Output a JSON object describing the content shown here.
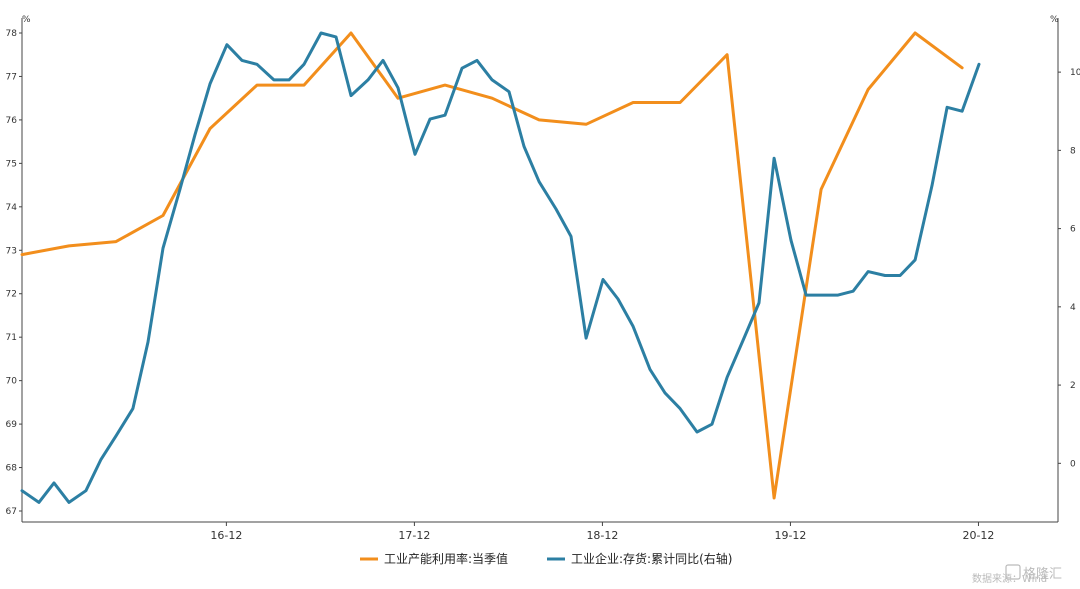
{
  "chart_data": {
    "type": "line",
    "left_unit": "%",
    "right_unit": "%",
    "left_axis": {
      "min": 67,
      "max": 78,
      "ticks": [
        67,
        68,
        69,
        70,
        71,
        72,
        73,
        74,
        75,
        76,
        77,
        78
      ]
    },
    "right_axis": {
      "min": -1.5,
      "max": 11,
      "ticks": [
        0,
        2,
        4,
        6,
        8,
        10
      ]
    },
    "x_range": [
      2015.83,
      2021.34
    ],
    "x_ticks": [
      {
        "label": "16-12",
        "x": 2016.917
      },
      {
        "label": "17-12",
        "x": 2017.917
      },
      {
        "label": "18-12",
        "x": 2018.917
      },
      {
        "label": "19-12",
        "x": 2019.917
      },
      {
        "label": "20-12",
        "x": 2020.917
      }
    ],
    "legend_position": "bottom",
    "series": [
      {
        "name": "工业产能利用率:当季值",
        "axis": "left",
        "color": "#F28E1C",
        "points": [
          [
            2015.83,
            72.9
          ],
          [
            2016.08,
            73.1
          ],
          [
            2016.33,
            73.2
          ],
          [
            2016.58,
            73.8
          ],
          [
            2016.83,
            75.8
          ],
          [
            2017.08,
            76.8
          ],
          [
            2017.33,
            76.8
          ],
          [
            2017.58,
            78.0
          ],
          [
            2017.83,
            76.5
          ],
          [
            2018.08,
            76.8
          ],
          [
            2018.33,
            76.5
          ],
          [
            2018.58,
            76.0
          ],
          [
            2018.83,
            75.9
          ],
          [
            2019.08,
            76.4
          ],
          [
            2019.33,
            76.4
          ],
          [
            2019.58,
            77.5
          ],
          [
            2019.83,
            67.3
          ],
          [
            2020.08,
            74.4
          ],
          [
            2020.33,
            76.7
          ],
          [
            2020.58,
            78.0
          ],
          [
            2020.83,
            77.2
          ]
        ]
      },
      {
        "name": "工业企业:存货:累计同比(右轴)",
        "axis": "right",
        "color": "#2C7FA3",
        "points": [
          [
            2015.83,
            -0.7
          ],
          [
            2015.92,
            -1.0
          ],
          [
            2016.0,
            -0.5
          ],
          [
            2016.08,
            -1.0
          ],
          [
            2016.17,
            -0.7
          ],
          [
            2016.25,
            0.1
          ],
          [
            2016.33,
            0.7
          ],
          [
            2016.42,
            1.4
          ],
          [
            2016.5,
            3.1
          ],
          [
            2016.58,
            5.5
          ],
          [
            2016.67,
            7.0
          ],
          [
            2016.75,
            8.4
          ],
          [
            2016.83,
            9.7
          ],
          [
            2016.92,
            10.7
          ],
          [
            2017.0,
            10.3
          ],
          [
            2017.08,
            10.2
          ],
          [
            2017.17,
            9.8
          ],
          [
            2017.25,
            9.8
          ],
          [
            2017.33,
            10.2
          ],
          [
            2017.42,
            11.0
          ],
          [
            2017.5,
            10.9
          ],
          [
            2017.58,
            9.4
          ],
          [
            2017.67,
            9.8
          ],
          [
            2017.75,
            10.3
          ],
          [
            2017.83,
            9.6
          ],
          [
            2017.92,
            7.9
          ],
          [
            2018.0,
            8.8
          ],
          [
            2018.08,
            8.9
          ],
          [
            2018.17,
            10.1
          ],
          [
            2018.25,
            10.3
          ],
          [
            2018.33,
            9.8
          ],
          [
            2018.42,
            9.5
          ],
          [
            2018.5,
            8.1
          ],
          [
            2018.58,
            7.2
          ],
          [
            2018.67,
            6.5
          ],
          [
            2018.75,
            5.8
          ],
          [
            2018.83,
            3.2
          ],
          [
            2018.92,
            4.7
          ],
          [
            2019.0,
            4.2
          ],
          [
            2019.08,
            3.5
          ],
          [
            2019.17,
            2.4
          ],
          [
            2019.25,
            1.8
          ],
          [
            2019.33,
            1.4
          ],
          [
            2019.42,
            0.8
          ],
          [
            2019.5,
            1.0
          ],
          [
            2019.58,
            2.2
          ],
          [
            2019.67,
            3.2
          ],
          [
            2019.75,
            4.1
          ],
          [
            2019.83,
            7.8
          ],
          [
            2019.92,
            5.7
          ],
          [
            2020.0,
            4.3
          ],
          [
            2020.08,
            4.3
          ],
          [
            2020.17,
            4.3
          ],
          [
            2020.25,
            4.4
          ],
          [
            2020.33,
            4.9
          ],
          [
            2020.42,
            4.8
          ],
          [
            2020.5,
            4.8
          ],
          [
            2020.58,
            5.2
          ],
          [
            2020.67,
            7.1
          ],
          [
            2020.75,
            9.1
          ],
          [
            2020.83,
            9.0
          ],
          [
            2020.92,
            10.2
          ]
        ]
      }
    ]
  },
  "watermark": {
    "source_text": "数据来源：Wind",
    "brand_text": "格隆汇"
  }
}
